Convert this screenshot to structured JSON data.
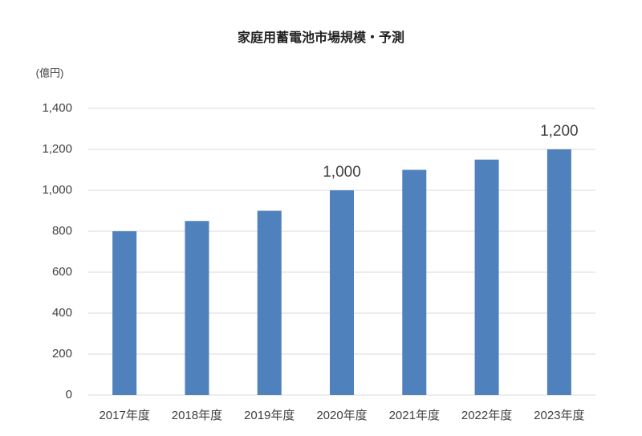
{
  "chart_data": {
    "type": "bar",
    "title": "家庭用蓄電池市場規模・予測",
    "y_label": "(億円)",
    "categories": [
      "2017年度",
      "2018年度",
      "2019年度",
      "2020年度",
      "2021年度",
      "2022年度",
      "2023年度"
    ],
    "values": [
      800,
      850,
      900,
      1000,
      1100,
      1150,
      1200
    ],
    "value_labels": [
      null,
      null,
      null,
      "1,000",
      null,
      null,
      "1,200"
    ],
    "color": "#4f81bd",
    "ylim": [
      0,
      1400
    ],
    "yticks": [
      0,
      200,
      400,
      600,
      800,
      {
        "value": 1000,
        "label": "1,000"
      },
      {
        "value": 1200,
        "label": "1,200"
      },
      {
        "value": 1400,
        "label": "1,400"
      }
    ],
    "grid": true
  }
}
